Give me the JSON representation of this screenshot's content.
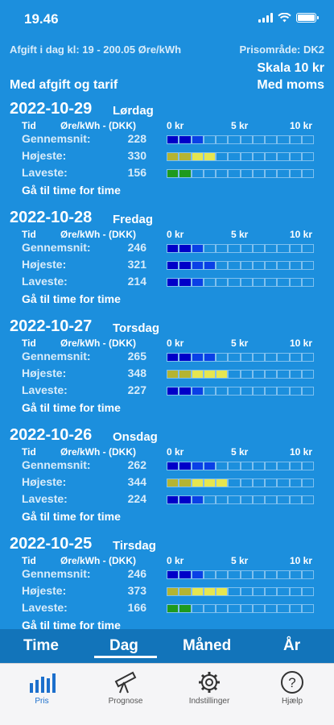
{
  "status": {
    "time": "19.46"
  },
  "header": {
    "afgift_info": "Afgift i dag kl: 19 - 200.05 Øre/kWh",
    "price_area": "Prisområde: DK2",
    "scale": "Skala 10 kr",
    "with_tax": "Med afgift og tarif",
    "with_vat": "Med moms"
  },
  "columns": {
    "time": "Tid",
    "unit": "Øre/kWh - (DKK)",
    "scale_0": "0 kr",
    "scale_5": "5 kr",
    "scale_10": "10 kr"
  },
  "row_labels": {
    "avg": "Gennemsnit:",
    "high": "Højeste:",
    "low": "Laveste:"
  },
  "goto_label": "Gå til time for time",
  "colors": {
    "dark_blue": "#0000c8",
    "blue": "#0a40e6",
    "light": "#2f7de0",
    "yellow_dark": "#b4b432",
    "yellow": "#e6e650",
    "green_dark": "#1e9a1e",
    "green": "#32c832",
    "empty": "#1c8fdd"
  },
  "days": [
    {
      "date": "2022-10-29",
      "weekday": "Lørdag",
      "avg": "228",
      "high": "330",
      "low": "156"
    },
    {
      "date": "2022-10-28",
      "weekday": "Fredag",
      "avg": "246",
      "high": "321",
      "low": "214"
    },
    {
      "date": "2022-10-27",
      "weekday": "Torsdag",
      "avg": "265",
      "high": "348",
      "low": "227"
    },
    {
      "date": "2022-10-26",
      "weekday": "Onsdag",
      "avg": "262",
      "high": "344",
      "low": "224"
    },
    {
      "date": "2022-10-25",
      "weekday": "Tirsdag",
      "avg": "246",
      "high": "373",
      "low": "166"
    }
  ],
  "tabs": [
    {
      "label": "Time",
      "active": false
    },
    {
      "label": "Dag",
      "active": true
    },
    {
      "label": "Måned",
      "active": false
    },
    {
      "label": "År",
      "active": false
    }
  ],
  "nav": [
    {
      "label": "Pris",
      "icon": "bar-chart-icon",
      "active": true
    },
    {
      "label": "Prognose",
      "icon": "telescope-icon",
      "active": false
    },
    {
      "label": "Indstillinger",
      "icon": "gear-icon",
      "active": false
    },
    {
      "label": "Hjælp",
      "icon": "help-icon",
      "active": false
    }
  ]
}
